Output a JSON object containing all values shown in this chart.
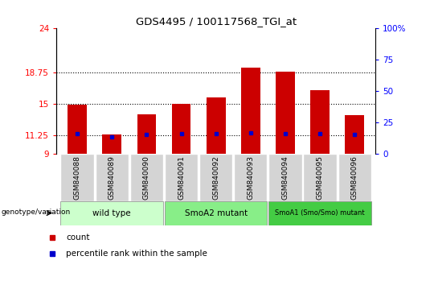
{
  "title": "GDS4495 / 100117568_TGI_at",
  "samples": [
    "GSM840088",
    "GSM840089",
    "GSM840090",
    "GSM840091",
    "GSM840092",
    "GSM840093",
    "GSM840094",
    "GSM840095",
    "GSM840096"
  ],
  "bar_values": [
    14.9,
    11.3,
    13.7,
    15.0,
    15.8,
    19.3,
    18.8,
    16.6,
    13.6
  ],
  "percentile_values": [
    11.4,
    11.05,
    11.3,
    11.4,
    11.4,
    11.5,
    11.45,
    11.4,
    11.3
  ],
  "ymin": 9,
  "ymax": 24,
  "yticks": [
    9,
    11.25,
    15,
    18.75,
    24
  ],
  "ytick_labels": [
    "9",
    "11.25",
    "15",
    "18.75",
    "24"
  ],
  "y2ticks_pct": [
    0,
    25,
    50,
    75,
    100
  ],
  "y2tick_labels": [
    "0",
    "25",
    "50",
    "75",
    "100%"
  ],
  "bar_color": "#cc0000",
  "percentile_color": "#0000cc",
  "bar_width": 0.55,
  "groups": [
    {
      "label": "wild type",
      "start": 0,
      "end": 3,
      "color": "#ccffcc"
    },
    {
      "label": "SmoA2 mutant",
      "start": 3,
      "end": 6,
      "color": "#88ee88"
    },
    {
      "label": "SmoA1 (Smo/Smo) mutant",
      "start": 6,
      "end": 9,
      "color": "#44cc44"
    }
  ],
  "legend_count_label": "count",
  "legend_pct_label": "percentile rank within the sample",
  "genotype_label": "genotype/variation"
}
